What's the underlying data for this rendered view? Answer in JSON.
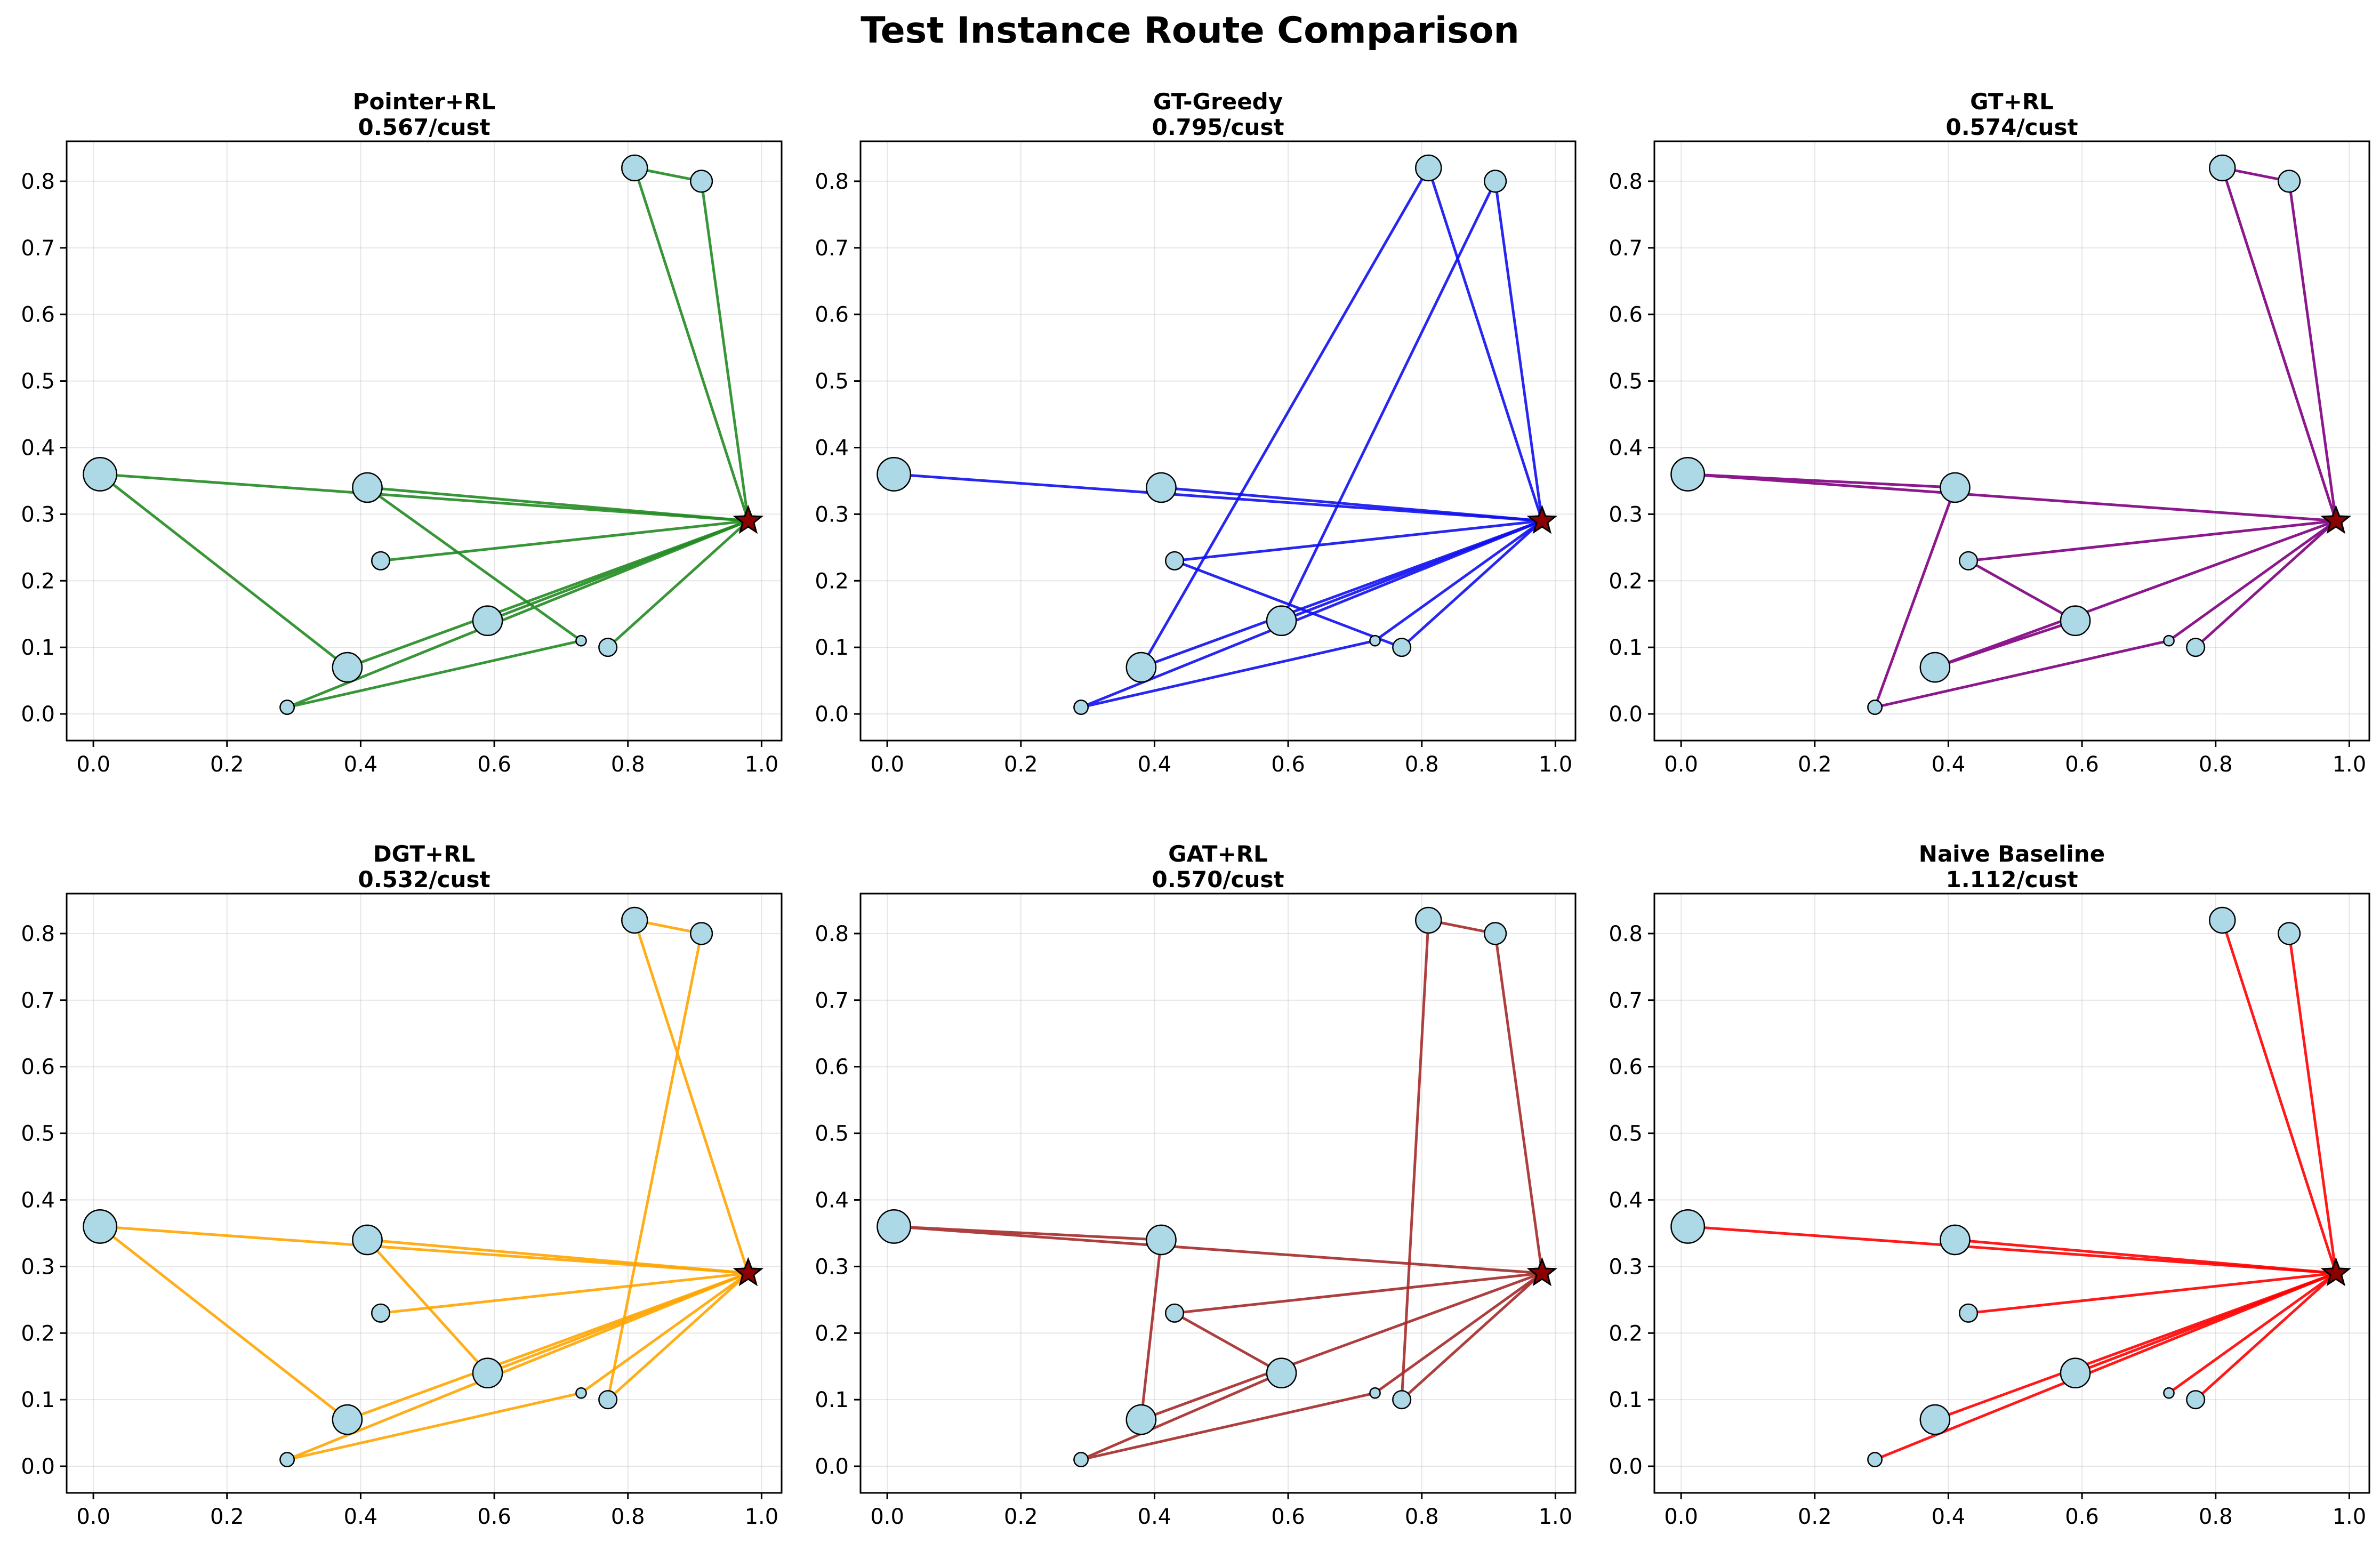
{
  "title": "Test Instance Route Comparison",
  "chart_data": {
    "type": "scatter",
    "title": "Test Instance Route Comparison",
    "xlim": [
      -0.04,
      1.03
    ],
    "ylim": [
      -0.04,
      0.86
    ],
    "xticks": [
      "0.0",
      "0.2",
      "0.4",
      "0.6",
      "0.8",
      "1.0"
    ],
    "xtick_values": [
      0.0,
      0.2,
      0.4,
      0.6,
      0.8,
      1.0
    ],
    "yticks": [
      "0.0",
      "0.1",
      "0.2",
      "0.3",
      "0.4",
      "0.5",
      "0.6",
      "0.7",
      "0.8"
    ],
    "ytick_values": [
      0.0,
      0.1,
      0.2,
      0.3,
      0.4,
      0.5,
      0.6,
      0.7,
      0.8
    ],
    "grid": true,
    "depot": {
      "x": 0.98,
      "y": 0.29
    },
    "customers": [
      {
        "id": 1,
        "x": 0.81,
        "y": 0.82,
        "demand": 5
      },
      {
        "id": 2,
        "x": 0.91,
        "y": 0.8,
        "demand": 4
      },
      {
        "id": 3,
        "x": 0.01,
        "y": 0.36,
        "demand": 7
      },
      {
        "id": 4,
        "x": 0.41,
        "y": 0.34,
        "demand": 6
      },
      {
        "id": 5,
        "x": 0.43,
        "y": 0.23,
        "demand": 3
      },
      {
        "id": 6,
        "x": 0.59,
        "y": 0.14,
        "demand": 6
      },
      {
        "id": 7,
        "x": 0.73,
        "y": 0.11,
        "demand": 1
      },
      {
        "id": 8,
        "x": 0.77,
        "y": 0.1,
        "demand": 3
      },
      {
        "id": 9,
        "x": 0.38,
        "y": 0.07,
        "demand": 6
      },
      {
        "id": 10,
        "x": 0.29,
        "y": 0.01,
        "demand": 2
      }
    ],
    "panels": [
      {
        "name": "Pointer+RL",
        "subtitle": "0.567/cust",
        "color": "#228b22",
        "routes": [
          [
            1,
            2
          ],
          [
            5
          ],
          [
            3,
            9
          ],
          [
            10,
            7,
            4
          ],
          [
            6
          ],
          [
            8
          ]
        ]
      },
      {
        "name": "GT-Greedy",
        "subtitle": "0.795/cust",
        "color": "#1010f0",
        "routes": [
          [
            3
          ],
          [
            4
          ],
          [
            9,
            1
          ],
          [
            8,
            5
          ],
          [
            10,
            7
          ],
          [
            6,
            2
          ]
        ]
      },
      {
        "name": "GT+RL",
        "subtitle": "0.574/cust",
        "color": "#800080",
        "routes": [
          [
            2,
            1
          ],
          [
            3,
            4,
            10,
            7
          ],
          [
            5,
            6,
            9
          ],
          [
            8
          ]
        ]
      },
      {
        "name": "DGT+RL",
        "subtitle": "0.532/cust",
        "color": "#ffa500",
        "routes": [
          [
            1,
            2,
            8
          ],
          [
            3,
            9
          ],
          [
            6,
            4
          ],
          [
            5
          ],
          [
            10,
            7
          ]
        ]
      },
      {
        "name": "GAT+RL",
        "subtitle": "0.570/cust",
        "color": "#a52a2a",
        "routes": [
          [
            3,
            4,
            9
          ],
          [
            8,
            1,
            2
          ],
          [
            5,
            6,
            10,
            7
          ]
        ]
      },
      {
        "name": "Naive Baseline",
        "subtitle": "1.112/cust",
        "color": "#ff0000",
        "routes": [
          [
            1
          ],
          [
            2
          ],
          [
            3
          ],
          [
            4
          ],
          [
            5
          ],
          [
            6
          ],
          [
            7
          ],
          [
            8
          ],
          [
            9
          ],
          [
            10
          ]
        ]
      }
    ]
  }
}
